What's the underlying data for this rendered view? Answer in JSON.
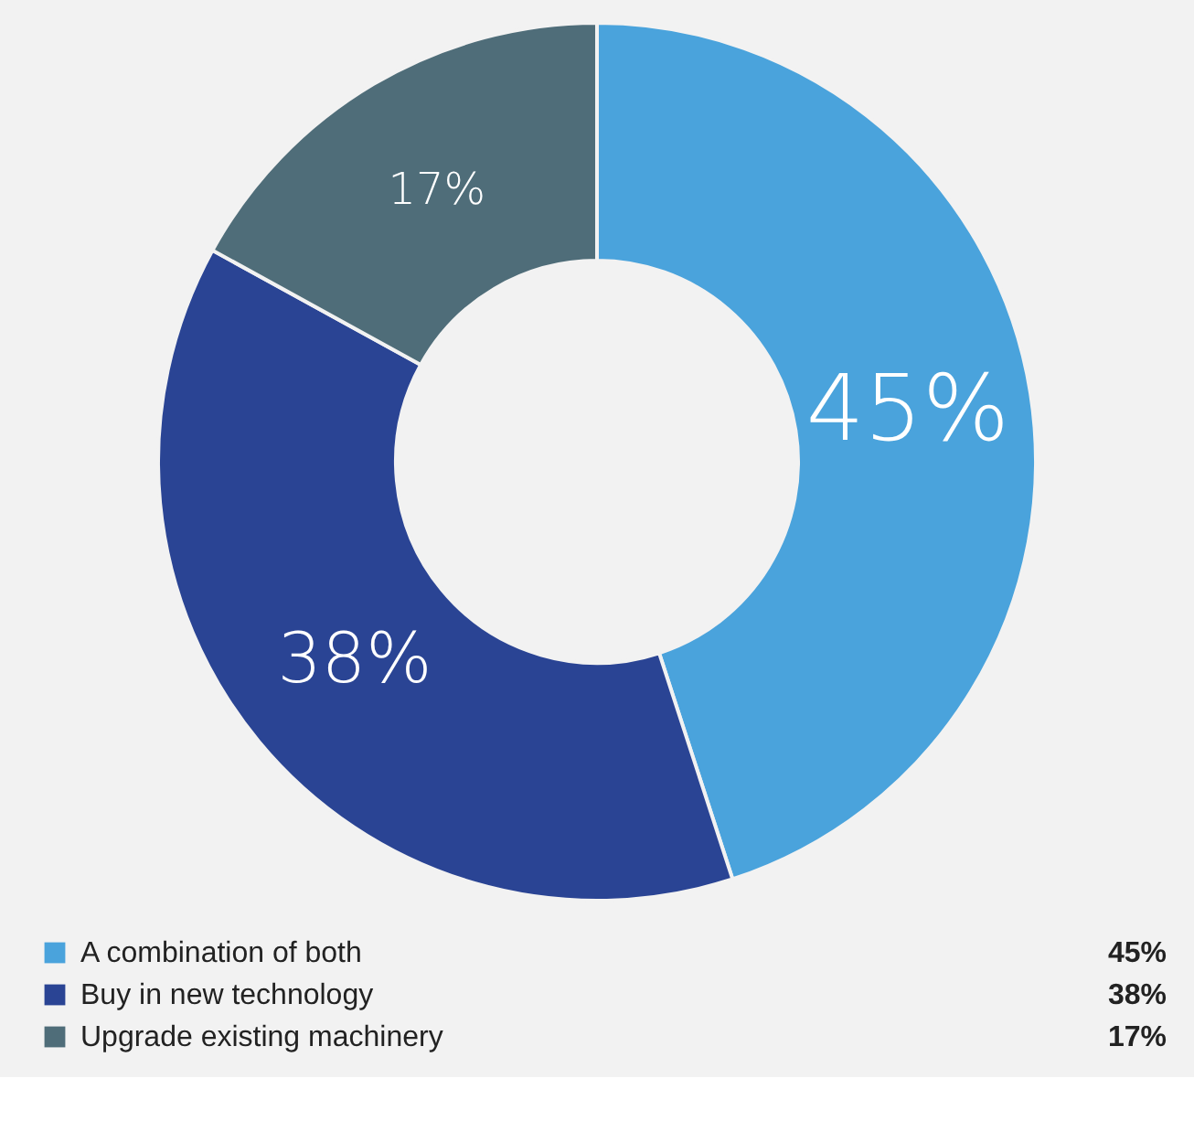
{
  "chart_data": {
    "type": "donut",
    "categories": [
      "A combination of both",
      "Buy in new technology",
      "Upgrade existing machinery"
    ],
    "values": [
      45,
      38,
      17
    ],
    "value_labels": [
      "45%",
      "38%",
      "17%"
    ],
    "colors": [
      "#4aa3dc",
      "#2a4494",
      "#4f6d79"
    ],
    "legend": "bottom"
  }
}
